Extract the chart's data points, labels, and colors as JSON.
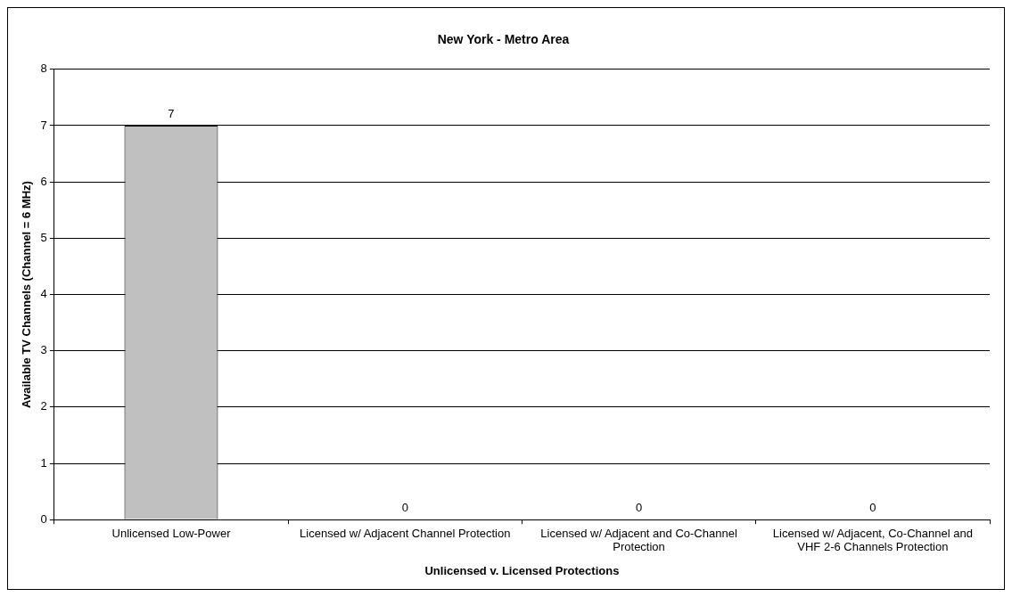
{
  "chart_data": {
    "type": "bar",
    "title": "New York - Metro Area",
    "xlabel": "Unlicensed v. Licensed Protections",
    "ylabel": "Available TV Channels (Channel = 6 MHz)",
    "categories": [
      "Unlicensed Low-Power",
      "Licensed w/ Adjacent Channel Protection",
      "Licensed w/ Adjacent and Co-Channel Protection",
      "Licensed w/ Adjacent, Co-Channel and VHF 2-6 Channels Protection"
    ],
    "values": [
      7,
      0,
      0,
      0
    ],
    "color": "#c0c0c0",
    "ylim": [
      0,
      8
    ],
    "yticks": [
      0,
      1,
      2,
      3,
      4,
      5,
      6,
      7,
      8
    ],
    "grid": "y",
    "legend": false,
    "data_labels": true
  }
}
